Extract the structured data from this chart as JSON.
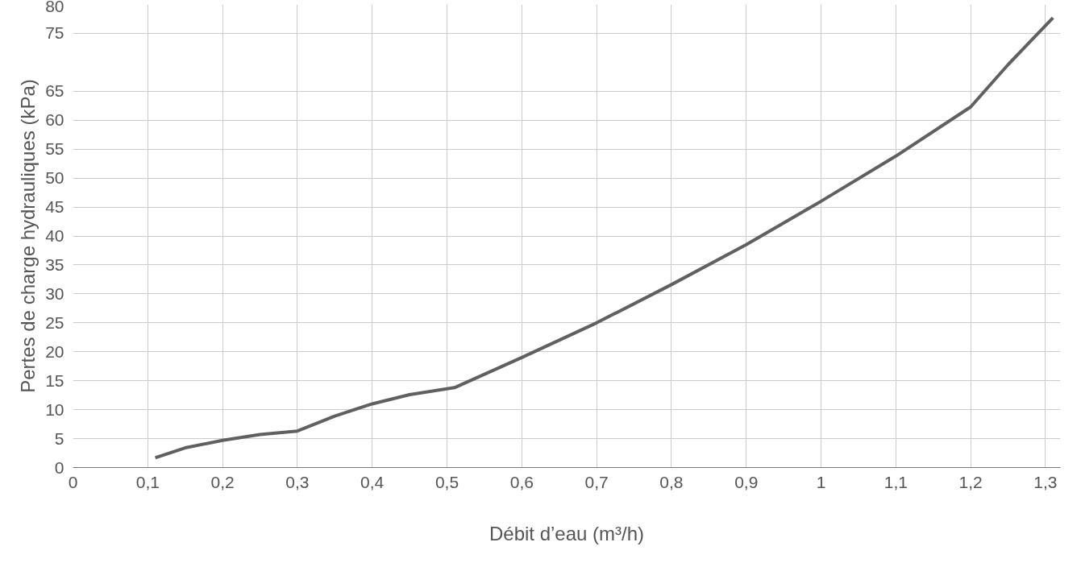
{
  "chart_data": {
    "type": "line",
    "xlabel": "Débit d’eau (m³/h)",
    "ylabel": "Pertes de charge hydrauliques (kPa)",
    "x": [
      0.11,
      0.15,
      0.2,
      0.25,
      0.3,
      0.35,
      0.4,
      0.45,
      0.51,
      0.6,
      0.7,
      0.8,
      0.9,
      1.0,
      1.1,
      1.2,
      1.25,
      1.31
    ],
    "series": [
      {
        "color": "#606060",
        "values": [
          1.7,
          3.4,
          4.7,
          5.7,
          6.3,
          8.9,
          11.0,
          12.6,
          13.8,
          19.0,
          25.0,
          31.6,
          38.5,
          46.0,
          53.8,
          62.3,
          69.6,
          77.7
        ]
      }
    ],
    "xlim": [
      0,
      1.32
    ],
    "ylim": [
      0,
      80
    ],
    "xticks": [
      0,
      {
        "value": 0.1,
        "label": "0,1"
      },
      {
        "value": 0.2,
        "label": "0,2"
      },
      {
        "value": 0.3,
        "label": "0,3"
      },
      {
        "value": 0.4,
        "label": "0,4"
      },
      {
        "value": 0.5,
        "label": "0,5"
      },
      {
        "value": 0.6,
        "label": "0,6"
      },
      {
        "value": 0.7,
        "label": "0,7"
      },
      {
        "value": 0.8,
        "label": "0,8"
      },
      {
        "value": 0.9,
        "label": "0,9"
      },
      1,
      {
        "value": 1.1,
        "label": "1,1"
      },
      {
        "value": 1.2,
        "label": "1,2"
      },
      {
        "value": 1.3,
        "label": "1,3"
      }
    ],
    "yticks": [
      0,
      5,
      10,
      15,
      20,
      25,
      30,
      35,
      40,
      45,
      50,
      55,
      60,
      65,
      75,
      80
    ],
    "grid": true,
    "marker": "none",
    "line_style": "solid"
  }
}
